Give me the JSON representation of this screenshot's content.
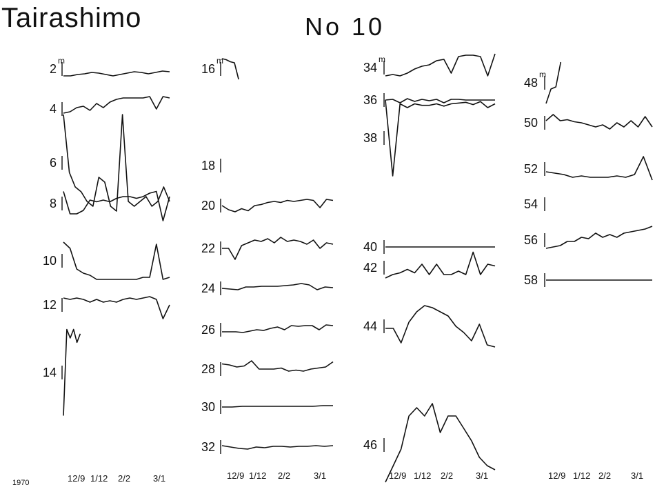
{
  "figure": {
    "title": "Tairashimo",
    "subtitle": "No 10",
    "year_label": "1970"
  },
  "chart_data": [
    {
      "type": "line",
      "panel": 1,
      "x_tick_labels": [
        "12/9",
        "1/12",
        "2/2",
        "3/1"
      ],
      "unit_label": "m",
      "series": [
        {
          "depth": "2",
          "values": [
            0,
            0,
            0.1,
            0.15,
            0.25,
            0.2,
            0.1,
            0,
            0.1,
            0.2,
            0.3,
            0.25,
            0.15,
            0.25,
            0.35,
            0.3
          ]
        },
        {
          "depth": "4",
          "values": [
            0.35,
            0.4,
            0.55,
            0.6,
            0.45,
            0.7,
            0.55,
            0.75,
            0.85,
            0.9,
            0.9,
            0.9,
            0.9,
            0.95,
            0.5,
            0.95,
            0.9
          ]
        },
        {
          "depth": "6",
          "values": [
            1,
            0.4,
            0.25,
            0.2,
            0.1,
            0.05,
            0.35,
            0.3,
            0.05,
            0,
            1,
            0.1,
            0.05,
            0.1,
            0.15,
            0.05,
            0.1,
            0.25,
            0.1
          ]
        },
        {
          "depth": "8",
          "values": [
            0.85,
            0.2,
            0.2,
            0.3,
            0.6,
            0.55,
            0.6,
            0.55,
            0.65,
            0.7,
            0.7,
            0.65,
            0.7,
            0.8,
            0.85,
            0,
            0.7
          ]
        },
        {
          "depth": "10",
          "values": [
            0.95,
            0.8,
            0.3,
            0.2,
            0.15,
            0.05,
            0.05,
            0.05,
            0.05,
            0.05,
            0.05,
            0.05,
            0.1,
            0.1,
            0.9,
            0.05,
            0.1
          ]
        },
        {
          "depth": "12",
          "values": [
            0.75,
            0.7,
            0.75,
            0.7,
            0.6,
            0.7,
            0.6,
            0.65,
            0.6,
            0.7,
            0.75,
            0.7,
            0.75,
            0.8,
            0.7,
            0,
            0.5
          ]
        },
        {
          "depth": "14",
          "values": [
            0,
            1,
            0.9,
            1,
            0.85,
            0.95
          ]
        }
      ]
    },
    {
      "type": "line",
      "panel": 2,
      "x_tick_labels": [
        "12/9",
        "1/12",
        "2/2",
        "3/1"
      ],
      "unit_label": "m",
      "series": [
        {
          "depth": "16",
          "values": [
            1,
            0.95,
            0.85,
            0.8,
            0
          ]
        },
        {
          "depth": "18",
          "values": []
        },
        {
          "depth": "20",
          "values": [
            0.5,
            0.3,
            0.2,
            0.35,
            0.25,
            0.5,
            0.55,
            0.65,
            0.7,
            0.65,
            0.75,
            0.7,
            0.75,
            0.8,
            0.75,
            0.4,
            0.8,
            0.75
          ]
        },
        {
          "depth": "22",
          "values": [
            0.5,
            0.5,
            0.1,
            0.6,
            0.7,
            0.8,
            0.75,
            0.85,
            0.7,
            0.9,
            0.75,
            0.8,
            0.75,
            0.65,
            0.8,
            0.5,
            0.7,
            0.65
          ]
        },
        {
          "depth": "24",
          "values": [
            0.5,
            0.45,
            0.4,
            0.6,
            0.6,
            0.65,
            0.65,
            0.65,
            0.7,
            0.75,
            0.85,
            0.75,
            0.4,
            0.6,
            0.55
          ]
        },
        {
          "depth": "26",
          "values": [
            0.35,
            0.35,
            0.35,
            0.3,
            0.4,
            0.5,
            0.45,
            0.6,
            0.7,
            0.5,
            0.8,
            0.75,
            0.8,
            0.8,
            0.5,
            0.85,
            0.8
          ]
        },
        {
          "depth": "28",
          "values": [
            0.75,
            0.7,
            0.6,
            0.65,
            0.9,
            0.5,
            0.5,
            0.5,
            0.55,
            0.4,
            0.45,
            0.4,
            0.5,
            0.55,
            0.6,
            0.85
          ]
        },
        {
          "depth": "30",
          "values": [
            0.5,
            0.5,
            0.55,
            0.55,
            0.55,
            0.55,
            0.55,
            0.55,
            0.55,
            0.55,
            0.6,
            0.6
          ]
        },
        {
          "depth": "32",
          "values": [
            0.6,
            0.5,
            0.4,
            0.35,
            0.5,
            0.45,
            0.55,
            0.55,
            0.5,
            0.55,
            0.55,
            0.6,
            0.55,
            0.6
          ]
        }
      ]
    },
    {
      "type": "line",
      "panel": 3,
      "x_tick_labels": [
        "12/9",
        "1/12",
        "2/2",
        "3/1"
      ],
      "unit_label": "m",
      "series": [
        {
          "depth": "34",
          "values": [
            0.2,
            0.25,
            0.2,
            0.3,
            0.45,
            0.55,
            0.6,
            0.75,
            0.8,
            0.3,
            0.9,
            0.95,
            0.95,
            0.9,
            0.2,
            1
          ]
        },
        {
          "depth": "36",
          "values": [
            0.5,
            0.55,
            0.3,
            0.6,
            0.4,
            0.55,
            0.45,
            0.55,
            0.3,
            0.55,
            0.55,
            0.5,
            0.5,
            0.5,
            0.5,
            0.5
          ]
        },
        {
          "depth": "38",
          "values": [
            1,
            0,
            0.95,
            0.9,
            0.95,
            0.93,
            0.93,
            0.95,
            0.92,
            0.95,
            0.96,
            0.97,
            0.94,
            0.98,
            0.9,
            0.95
          ]
        },
        {
          "depth": "40",
          "values": [
            0.5,
            0.5,
            0.5,
            0.5,
            0.5,
            0.5,
            0.5,
            0.5,
            0.5,
            0.5,
            0.5
          ]
        },
        {
          "depth": "42",
          "values": [
            0.2,
            0.3,
            0.35,
            0.45,
            0.35,
            0.6,
            0.3,
            0.6,
            0.3,
            0.3,
            0.4,
            0.3,
            0.95,
            0.3,
            0.6,
            0.55
          ]
        },
        {
          "depth": "44",
          "values": [
            0.45,
            0.45,
            0.1,
            0.6,
            0.85,
            1,
            0.95,
            0.85,
            0.75,
            0.5,
            0.35,
            0.15,
            0.55,
            0.05,
            0
          ]
        },
        {
          "depth": "46",
          "values": [
            0.05,
            0.25,
            0.45,
            0.85,
            0.95,
            0.85,
            1,
            0.65,
            0.85,
            0.85,
            0.7,
            0.55,
            0.35,
            0.25,
            0.2
          ]
        }
      ]
    },
    {
      "type": "line",
      "panel": 4,
      "x_tick_labels": [
        "12/9",
        "1/12",
        "2/2",
        "3/1"
      ],
      "unit_label": "m",
      "series": [
        {
          "depth": "48",
          "values": [
            0,
            0.35,
            0.4,
            1
          ]
        },
        {
          "depth": "50",
          "values": [
            0.6,
            0.9,
            0.6,
            0.65,
            0.55,
            0.5,
            0.4,
            0.3,
            0.4,
            0.2,
            0.5,
            0.3,
            0.6,
            0.3,
            0.8,
            0.3
          ]
        },
        {
          "depth": "52",
          "values": [
            0.4,
            0.35,
            0.3,
            0.2,
            0.25,
            0.2,
            0.2,
            0.2,
            0.25,
            0.2,
            0.3,
            0.95,
            0.1
          ]
        },
        {
          "depth": "54",
          "values": []
        },
        {
          "depth": "56",
          "values": [
            0.2,
            0.25,
            0.3,
            0.45,
            0.45,
            0.6,
            0.55,
            0.75,
            0.6,
            0.7,
            0.6,
            0.75,
            0.8,
            0.85,
            0.9,
            1
          ]
        },
        {
          "depth": "58",
          "values": [
            0.5,
            0.5,
            0.5,
            0.5,
            0.5,
            0.5,
            0.5,
            0.5
          ]
        }
      ]
    }
  ]
}
